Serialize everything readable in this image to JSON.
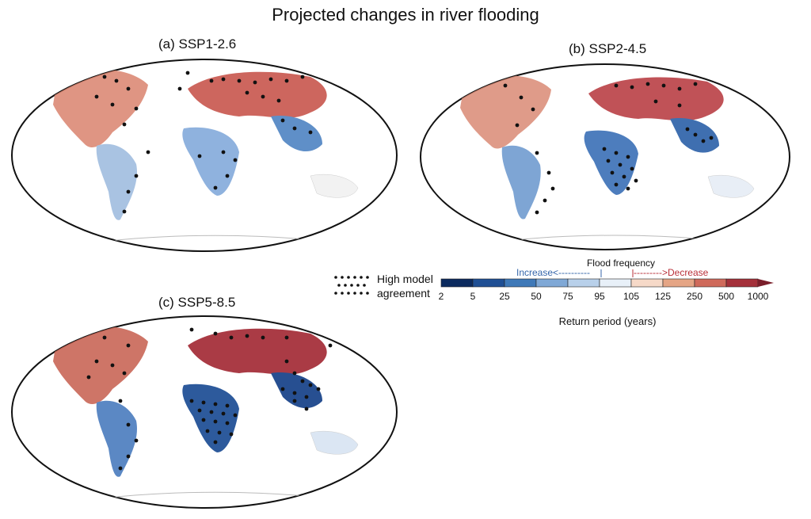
{
  "title": "Projected changes in river flooding",
  "panels": [
    {
      "id": "a",
      "label": "(a) SSP1-2.6"
    },
    {
      "id": "b",
      "label": "(b) SSP2-4.5"
    },
    {
      "id": "c",
      "label": "(c) SSP5-8.5"
    }
  ],
  "legend": {
    "agreement_label_line1": "High model",
    "agreement_label_line2": "agreement",
    "frequency_label": "Flood frequency",
    "increase_label": "Increase<----------",
    "decrease_label": "--------->Decrease",
    "xlabel": "Return period (years)",
    "ticks": [
      "2",
      "5",
      "25",
      "50",
      "75",
      "95",
      "105",
      "125",
      "250",
      "500",
      "1000"
    ],
    "colors": [
      "#0b2a5e",
      "#1f4f94",
      "#3f79b8",
      "#7fa8d6",
      "#b8d0ea",
      "#e8f0f8",
      "#f6d9c8",
      "#e5a585",
      "#cf6a5b",
      "#a4303a"
    ]
  },
  "colors": {
    "increase": "#3566aa",
    "decrease": "#b9313a",
    "land_neutral": "#f5f5f5",
    "ocean": "#ffffff"
  }
}
